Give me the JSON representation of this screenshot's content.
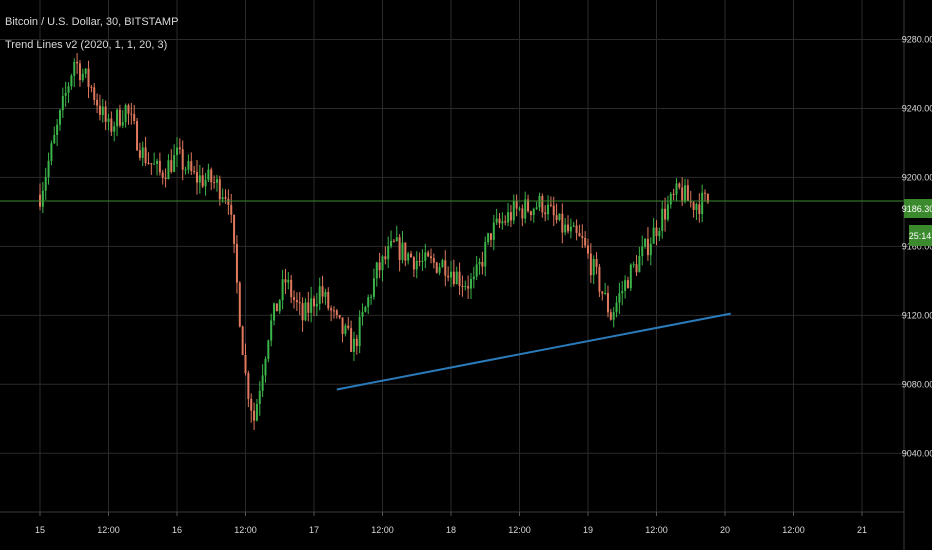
{
  "header": {
    "title": "Bitcoin / U.S. Dollar, 30, BITSTAMP",
    "indicator": "Trend Lines v2 (2020, 1, 1, 20, 3)"
  },
  "price_axis": {
    "ticks": [
      "9280.00",
      "9240.00",
      "9200.00",
      "9160.00",
      "9120.00",
      "9080.00",
      "9040.00"
    ],
    "current_price": "9186.30",
    "countdown": "25:14"
  },
  "time_axis": {
    "labels": [
      "15",
      "12:00",
      "16",
      "12:00",
      "17",
      "12:00",
      "18",
      "12:00",
      "19",
      "12:00",
      "20",
      "12:00",
      "21"
    ]
  },
  "colors": {
    "background": "#000000",
    "grid": "#2a2a2a",
    "up_candle": "#3bb54a",
    "down_candle": "#e0795d",
    "trend_line": "#2b7bbb",
    "price_line": "#3b8a2e",
    "price_label_bg": "#3b8a2e",
    "axis_text": "#d9d9d9"
  },
  "chart_data": {
    "type": "candlestick",
    "symbol": "BTCUSD",
    "exchange": "BITSTAMP",
    "interval_minutes": 30,
    "ylim": [
      9010,
      9300
    ],
    "close_path": [
      [
        "15 00:00",
        9190
      ],
      [
        "15 03:00",
        9228
      ],
      [
        "15 06:00",
        9268
      ],
      [
        "15 09:00",
        9252
      ],
      [
        "15 12:00",
        9228
      ],
      [
        "15 15:00",
        9240
      ],
      [
        "15 18:00",
        9214
      ],
      [
        "15 21:00",
        9202
      ],
      [
        "16 00:00",
        9212
      ],
      [
        "16 03:00",
        9200
      ],
      [
        "16 06:00",
        9198
      ],
      [
        "16 09:00",
        9190
      ],
      [
        "16 12:00",
        9085
      ],
      [
        "16 13:30",
        9060
      ],
      [
        "16 16:00",
        9110
      ],
      [
        "16 19:00",
        9140
      ],
      [
        "16 22:00",
        9118
      ],
      [
        "17 01:00",
        9135
      ],
      [
        "17 04:00",
        9115
      ],
      [
        "17 07:00",
        9102
      ],
      [
        "17 11:00",
        9145
      ],
      [
        "17 14:00",
        9160
      ],
      [
        "17 19:00",
        9150
      ],
      [
        "17 23:00",
        9150
      ],
      [
        "18 02:00",
        9140
      ],
      [
        "18 04:00",
        9138
      ],
      [
        "18 07:00",
        9168
      ],
      [
        "18 11:00",
        9180
      ],
      [
        "18 16:00",
        9185
      ],
      [
        "18 19:00",
        9172
      ],
      [
        "18 23:00",
        9162
      ],
      [
        "19 02:00",
        9138
      ],
      [
        "19 04:00",
        9120
      ],
      [
        "19 07:00",
        9142
      ],
      [
        "19 10:00",
        9158
      ],
      [
        "19 13:00",
        9178
      ],
      [
        "19 16:00",
        9192
      ],
      [
        "19 18:00",
        9185
      ],
      [
        "19 21:00",
        9186
      ]
    ],
    "trend_line": {
      "from": [
        "17 04:00",
        9077
      ],
      "to": [
        "20 01:00",
        9121
      ]
    },
    "current_price": 9186.3
  }
}
